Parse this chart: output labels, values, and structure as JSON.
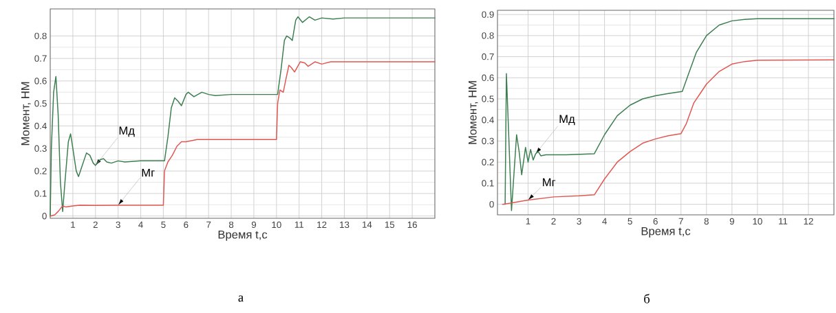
{
  "chart_data": [
    {
      "type": "line",
      "xlabel": "Время t,с",
      "ylabel": "Момент, НМ",
      "xlim": [
        0,
        17
      ],
      "ylim": [
        -0.01,
        0.92
      ],
      "xticks": [
        1,
        2,
        3,
        4,
        5,
        6,
        7,
        8,
        9,
        10,
        11,
        12,
        13,
        14,
        15,
        16
      ],
      "yticks": [
        0,
        0.1,
        0.2,
        0.3,
        0.4,
        0.5,
        0.6,
        0.7,
        0.8
      ],
      "grid": true,
      "series": [
        {
          "name": "Мд",
          "color": "#3a7d4f",
          "x": [
            0,
            0.05,
            0.15,
            0.25,
            0.35,
            0.45,
            0.55,
            0.65,
            0.8,
            0.9,
            1.0,
            1.15,
            1.25,
            1.4,
            1.6,
            1.75,
            1.9,
            2.0,
            2.2,
            2.35,
            2.5,
            2.7,
            3.0,
            3.3,
            4,
            5.05,
            5.2,
            5.35,
            5.5,
            5.65,
            5.8,
            6.0,
            6.1,
            6.35,
            6.7,
            7,
            7.3,
            8,
            10.05,
            10.2,
            10.35,
            10.45,
            10.6,
            10.7,
            10.85,
            10.95,
            11.15,
            11.45,
            11.7,
            12,
            12.5,
            13,
            17
          ],
          "values": [
            0,
            0.3,
            0.55,
            0.62,
            0.45,
            0.15,
            0.02,
            0.15,
            0.33,
            0.365,
            0.3,
            0.2,
            0.175,
            0.22,
            0.28,
            0.27,
            0.235,
            0.225,
            0.25,
            0.255,
            0.24,
            0.235,
            0.245,
            0.24,
            0.245,
            0.245,
            0.35,
            0.48,
            0.525,
            0.51,
            0.49,
            0.54,
            0.55,
            0.53,
            0.55,
            0.54,
            0.535,
            0.54,
            0.54,
            0.65,
            0.78,
            0.8,
            0.79,
            0.78,
            0.87,
            0.885,
            0.86,
            0.885,
            0.87,
            0.88,
            0.875,
            0.88,
            0.88
          ]
        },
        {
          "name": "Мг",
          "color": "#e0554f",
          "x": [
            0,
            0.2,
            0.35,
            0.55,
            0.7,
            1.0,
            1.3,
            2,
            3,
            5.0,
            5.05,
            5.2,
            5.4,
            5.6,
            5.8,
            6.0,
            6.5,
            7,
            10.0,
            10.05,
            10.15,
            10.3,
            10.4,
            10.55,
            10.65,
            10.8,
            11.05,
            11.25,
            11.4,
            11.7,
            12,
            12.4,
            17
          ],
          "values": [
            0,
            0.005,
            0.02,
            0.045,
            0.04,
            0.045,
            0.048,
            0.047,
            0.048,
            0.048,
            0.2,
            0.24,
            0.27,
            0.31,
            0.33,
            0.33,
            0.34,
            0.34,
            0.34,
            0.5,
            0.56,
            0.55,
            0.6,
            0.67,
            0.66,
            0.64,
            0.685,
            0.68,
            0.665,
            0.685,
            0.675,
            0.685,
            0.685
          ]
        }
      ],
      "annotations": [
        "а"
      ]
    },
    {
      "type": "line",
      "xlabel": "Время t,с",
      "ylabel": "Момент, НМ",
      "xlim": [
        -0.2,
        13
      ],
      "ylim": [
        -0.05,
        0.92
      ],
      "xticks": [
        1,
        2,
        3,
        4,
        5,
        6,
        7,
        8,
        9,
        10,
        11,
        12
      ],
      "yticks": [
        0,
        0.1,
        0.2,
        0.3,
        0.4,
        0.5,
        0.6,
        0.7,
        0.8,
        0.9
      ],
      "grid": true,
      "series": [
        {
          "name": "Мд",
          "color": "#3a7d4f",
          "x": [
            0,
            0.1,
            0.15,
            0.25,
            0.35,
            0.45,
            0.55,
            0.65,
            0.75,
            0.9,
            1.0,
            1.1,
            1.2,
            1.3,
            1.4,
            1.5,
            1.7,
            2.5,
            3.6,
            4.0,
            4.5,
            5,
            5.5,
            6,
            6.5,
            7.05,
            7.3,
            7.6,
            8,
            8.5,
            9,
            9.5,
            10,
            13
          ],
          "values": [
            0,
            0,
            0.62,
            0.3,
            -0.03,
            0.15,
            0.33,
            0.25,
            0.14,
            0.27,
            0.2,
            0.26,
            0.21,
            0.24,
            0.25,
            0.23,
            0.235,
            0.235,
            0.24,
            0.33,
            0.42,
            0.47,
            0.5,
            0.515,
            0.525,
            0.535,
            0.62,
            0.72,
            0.8,
            0.85,
            0.87,
            0.877,
            0.88,
            0.88
          ]
        },
        {
          "name": "Мг",
          "color": "#e0554f",
          "x": [
            0,
            0.3,
            1,
            2,
            3,
            3.6,
            4,
            4.5,
            5,
            5.5,
            6,
            6.5,
            7.0,
            7.2,
            7.5,
            8,
            8.5,
            9,
            9.5,
            10,
            13
          ],
          "values": [
            0,
            0.005,
            0.02,
            0.035,
            0.04,
            0.045,
            0.12,
            0.2,
            0.25,
            0.29,
            0.31,
            0.325,
            0.335,
            0.38,
            0.48,
            0.57,
            0.63,
            0.665,
            0.677,
            0.683,
            0.685
          ]
        }
      ],
      "annotations": [
        "б"
      ]
    }
  ]
}
